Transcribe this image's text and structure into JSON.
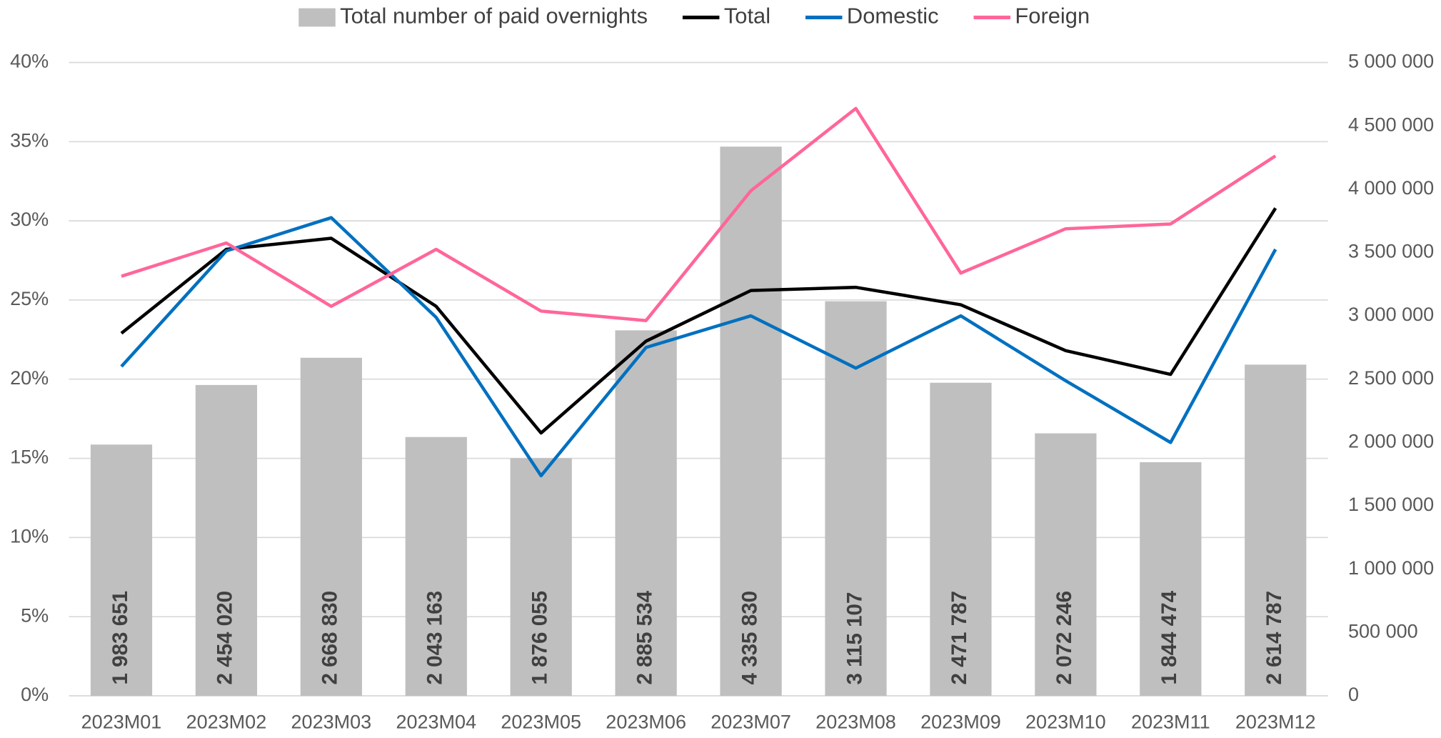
{
  "chart_data": {
    "type": "bar_line",
    "categories": [
      "2023M01",
      "2023M02",
      "2023M03",
      "2023M04",
      "2023M05",
      "2023M06",
      "2023M07",
      "2023M08",
      "2023M09",
      "2023M10",
      "2023M11",
      "2023M12"
    ],
    "series": [
      {
        "name": "Total number of paid overnights",
        "type": "bar",
        "axis": "y2",
        "color": "#bfbfbf",
        "values": [
          1983651,
          2454020,
          2668830,
          2043163,
          1876055,
          2885534,
          4335830,
          3115107,
          2471787,
          2072246,
          1844474,
          2614787
        ],
        "value_labels": [
          "1 983 651",
          "2 454 020",
          "2 668 830",
          "2 043 163",
          "1 876 055",
          "2 885 534",
          "4 335 830",
          "3 115 107",
          "2 471 787",
          "2 072 246",
          "1 844 474",
          "2 614 787"
        ]
      },
      {
        "name": "Total",
        "type": "line",
        "axis": "y",
        "color": "#000000",
        "values": [
          22.9,
          28.2,
          28.9,
          24.6,
          16.6,
          22.4,
          25.6,
          25.8,
          24.7,
          21.8,
          20.3,
          30.8
        ]
      },
      {
        "name": "Domestic",
        "type": "line",
        "axis": "y",
        "color": "#0070c0",
        "values": [
          20.8,
          28.1,
          30.2,
          23.9,
          13.9,
          22.0,
          24.0,
          20.7,
          24.0,
          19.9,
          16.0,
          28.2
        ]
      },
      {
        "name": "Foreign",
        "type": "line",
        "axis": "y",
        "color": "#ff6699",
        "values": [
          26.5,
          28.6,
          24.6,
          28.2,
          24.3,
          23.7,
          31.9,
          37.1,
          26.7,
          29.5,
          29.8,
          34.1
        ]
      }
    ],
    "ylim": [
      0,
      40
    ],
    "yticks": [
      {
        "value": 0,
        "label": "0%"
      },
      {
        "value": 5,
        "label": "5%"
      },
      {
        "value": 10,
        "label": "10%"
      },
      {
        "value": 15,
        "label": "15%"
      },
      {
        "value": 20,
        "label": "20%"
      },
      {
        "value": 25,
        "label": "25%"
      },
      {
        "value": 30,
        "label": "30%"
      },
      {
        "value": 35,
        "label": "35%"
      },
      {
        "value": 40,
        "label": "40%"
      }
    ],
    "y2lim": [
      0,
      5000000
    ],
    "y2ticks": [
      0,
      {
        "value": 500000,
        "label": "500 000"
      },
      {
        "value": 1000000,
        "label": "1 000 000"
      },
      {
        "value": 1500000,
        "label": "1 500 000"
      },
      {
        "value": 2000000,
        "label": "2 000 000"
      },
      {
        "value": 2500000,
        "label": "2 500 000"
      },
      {
        "value": 3000000,
        "label": "3 000 000"
      },
      {
        "value": 3500000,
        "label": "3 500 000"
      },
      {
        "value": 4000000,
        "label": "4 000 000"
      },
      {
        "value": 4500000,
        "label": "4 500 000"
      },
      {
        "value": 5000000,
        "label": "5 000 000"
      }
    ],
    "grid": true,
    "legend": "top"
  }
}
